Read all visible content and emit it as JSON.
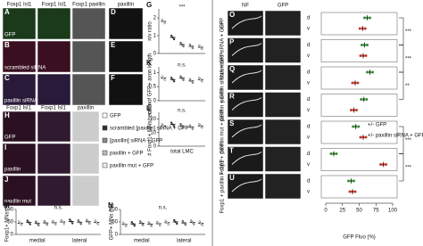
{
  "left": {
    "column_headers": [
      "Foxp1 Isl1",
      "Foxp1 Isl1",
      "Foxp1 paxillin",
      "paxillin"
    ],
    "upper_panels": [
      {
        "label": "A",
        "row": "GFP"
      },
      {
        "label": "B",
        "row": "scrambled siRNA"
      },
      {
        "label": "C",
        "row": "paxillin siRNA"
      }
    ],
    "side_panels": [
      "D",
      "E",
      "F"
    ],
    "lower_headers": [
      "Foxp1 Isl1",
      "Foxp1 Isl1",
      "paxillin"
    ],
    "lower_panels": [
      {
        "label": "H",
        "row": "GFP"
      },
      {
        "label": "I",
        "row": "paxillin"
      },
      {
        "label": "J",
        "row": "paxillin mut"
      }
    ],
    "legend": [
      "GFP",
      "scrambled [paxillin] siRNA + GFP",
      "[paxillin] siRNA + GFP",
      "paxillin + GFP",
      "paxillin mut + GFP"
    ],
    "plots": [
      {
        "label": "G",
        "ylabel": "n/v ratio",
        "ylim": [
          0,
          2.5
        ],
        "yticks": [
          0,
          1,
          2
        ],
        "values": [
          1.8,
          0.9,
          0.5,
          0.4,
          0.35
        ],
        "annotation": "***"
      },
      {
        "label": "K",
        "ylabel": "ratio of GFP+ axon length",
        "ylim": [
          0,
          1.2
        ],
        "yticks": [
          0,
          0.5,
          1
        ],
        "values": [
          0.8,
          0.75,
          0.8,
          0.7,
          0.75
        ],
        "annotation": "n.s."
      },
      {
        "label": "L",
        "ylabel": "# Foxp1+ MNs/section",
        "ylim": [
          0,
          25
        ],
        "yticks": [
          0,
          10,
          20
        ],
        "values": [
          15,
          16,
          15,
          14,
          15
        ],
        "annotation": "n.s.",
        "xlabel": "total LMC"
      },
      {
        "label": "M",
        "ylabel": "Foxp1+ MNs (%)",
        "ylim": [
          0,
          100
        ],
        "yticks": [
          0,
          50,
          100
        ],
        "values": [
          45,
          48,
          44,
          46,
          47,
          50,
          52,
          49,
          51,
          48
        ],
        "annotation": "n.s.",
        "groups": [
          "medial",
          "lateral"
        ]
      },
      {
        "label": "N",
        "ylabel": "GFP+ MNs (%)",
        "ylim": [
          0,
          100
        ],
        "yticks": [
          0,
          50,
          100
        ],
        "values": [
          40,
          42,
          45,
          41,
          43,
          47,
          50,
          46,
          48,
          44
        ],
        "annotation": "n.s.",
        "groups": [
          "medial",
          "lateral"
        ]
      }
    ]
  },
  "right": {
    "column_headers": [
      "NF",
      "GFP"
    ],
    "rows": [
      {
        "label": "O",
        "name": "GFP",
        "d": 62,
        "v": 55
      },
      {
        "label": "P",
        "name": "scrambled siRNA + GFP",
        "d": 58,
        "v": 56
      },
      {
        "label": "Q",
        "name": "paxillin siRNA + GFP",
        "d": 66,
        "v": 44
      },
      {
        "label": "R",
        "name": "paxillin + GFP",
        "d": 57,
        "v": 42
      },
      {
        "label": "S",
        "name": "paxillin mut + GFP",
        "d": 45,
        "v": 56
      },
      {
        "label": "T",
        "name": "Foxp1 + GFP",
        "d": 12,
        "v": 86
      },
      {
        "label": "U",
        "name": "Foxp1 + paxillin + GFP",
        "d": 38,
        "v": 40
      }
    ],
    "row_tags": [
      "d",
      "v"
    ],
    "legend_text": [
      "+/- GFP",
      "+/- paxillin siRNA + GFP"
    ],
    "significance": [
      "***",
      "***",
      "**",
      "***",
      "***"
    ],
    "xlabel": "GFP Fluo (%)",
    "xlim": [
      0,
      100
    ],
    "xticks": [
      0,
      25,
      50,
      75,
      100
    ]
  }
}
